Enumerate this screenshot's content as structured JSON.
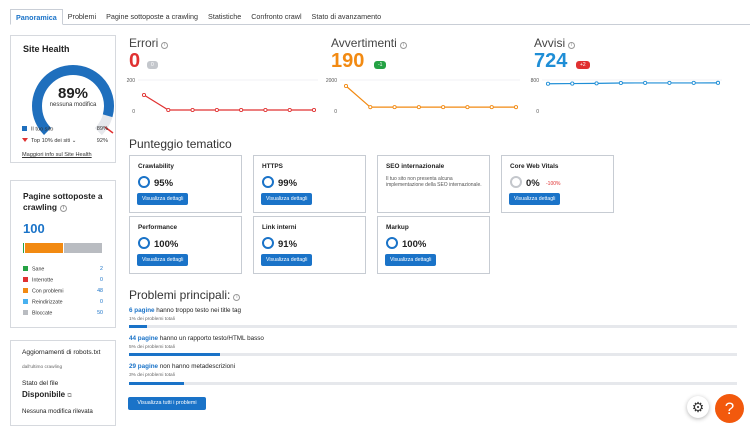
{
  "tabs": [
    "Panoramica",
    "Problemi",
    "Pagine sottoposte a crawling",
    "Statistiche",
    "Confronto crawl",
    "Stato di avanzamento"
  ],
  "site_health": {
    "title": "Site Health",
    "score": "89%",
    "change": "nessuna modifica",
    "score_fraction": 0.89,
    "legend": [
      {
        "label": "Il tuo sito",
        "value": "89%",
        "color": "#1f6fbd"
      },
      {
        "label": "Top 10% dei siti",
        "value": "92%",
        "color": "#e03131"
      }
    ],
    "link": "Maggiori info sul Site Health"
  },
  "crawled": {
    "title": "Pagine sottoposte a crawling",
    "count": "100",
    "rows": [
      {
        "label": "Sane",
        "value": "2",
        "color": "#25a244"
      },
      {
        "label": "Interrotte",
        "value": "0",
        "color": "#e03131"
      },
      {
        "label": "Con problemi",
        "value": "48",
        "color": "#f28a12"
      },
      {
        "label": "Reindirizzate",
        "value": "0",
        "color": "#48b1f0"
      },
      {
        "label": "Bloccate",
        "value": "50",
        "color": "#b9bcc1"
      }
    ]
  },
  "robots": {
    "title": "Aggiornamenti di robots.txt",
    "since": "dall'ultimo crawling",
    "status_label": "Stato del file",
    "status": "Disponibile",
    "changes": "Nessuna modifica rilevata"
  },
  "metrics": [
    {
      "title": "Errori",
      "value": "0",
      "badge": "0",
      "color": "#e03131",
      "badge_color": "#c4c7cc",
      "ymax": "200",
      "ymin": "0",
      "points": [
        100,
        0,
        0,
        0,
        0,
        0,
        0,
        0
      ]
    },
    {
      "title": "Avvertimenti",
      "value": "190",
      "badge": "-1",
      "color": "#f28a12",
      "badge_color": "#25a244",
      "ymax": "2000",
      "ymin": "0",
      "points": [
        1600,
        190,
        191,
        191,
        191,
        191,
        191,
        190
      ]
    },
    {
      "title": "Avvisi",
      "value": "724",
      "badge": "+2",
      "color": "#1f8ed6",
      "badge_color": "#e03131",
      "ymax": "800",
      "ymin": "0",
      "points": [
        700,
        705,
        710,
        720,
        722,
        722,
        722,
        724
      ]
    }
  ],
  "thematic": {
    "title": "Punteggio tematico",
    "button_label": "Visualizza dettagli",
    "cards": [
      {
        "title": "Crawlability",
        "value": "95%",
        "ring": "blue"
      },
      {
        "title": "HTTPS",
        "value": "99%",
        "ring": "blue"
      },
      {
        "title": "SEO internazionale",
        "desc": "Il tuo sito non presenta alcuna implementazione della SEO internazionale."
      },
      {
        "title": "Core Web Vitals",
        "value": "0%",
        "delta": "-100%",
        "ring": "grey"
      },
      {
        "title": "Performance",
        "value": "100%",
        "ring": "blue"
      },
      {
        "title": "Link interni",
        "value": "91%",
        "ring": "blue"
      },
      {
        "title": "Markup",
        "value": "100%",
        "ring": "blue"
      }
    ]
  },
  "problems": {
    "title": "Problemi principali:",
    "items": [
      {
        "count": "6 pagine",
        "text": "hanno troppo testo nei title tag",
        "sub": "1% dei problemi totali",
        "fraction": 0.01
      },
      {
        "count": "44 pagine",
        "text": "hanno un rapporto testo/HTML basso",
        "sub": "5% dei problemi totali",
        "fraction": 0.05
      },
      {
        "count": "29 pagine",
        "text": "non hanno metadescrizioni",
        "sub": "3% dei problemi totali",
        "fraction": 0.03
      }
    ],
    "button": "Visualizza tutti i problemi"
  },
  "icons": {
    "gear": "gear-icon",
    "help": "help-icon",
    "external": "external-link-icon",
    "info": "info-icon"
  }
}
